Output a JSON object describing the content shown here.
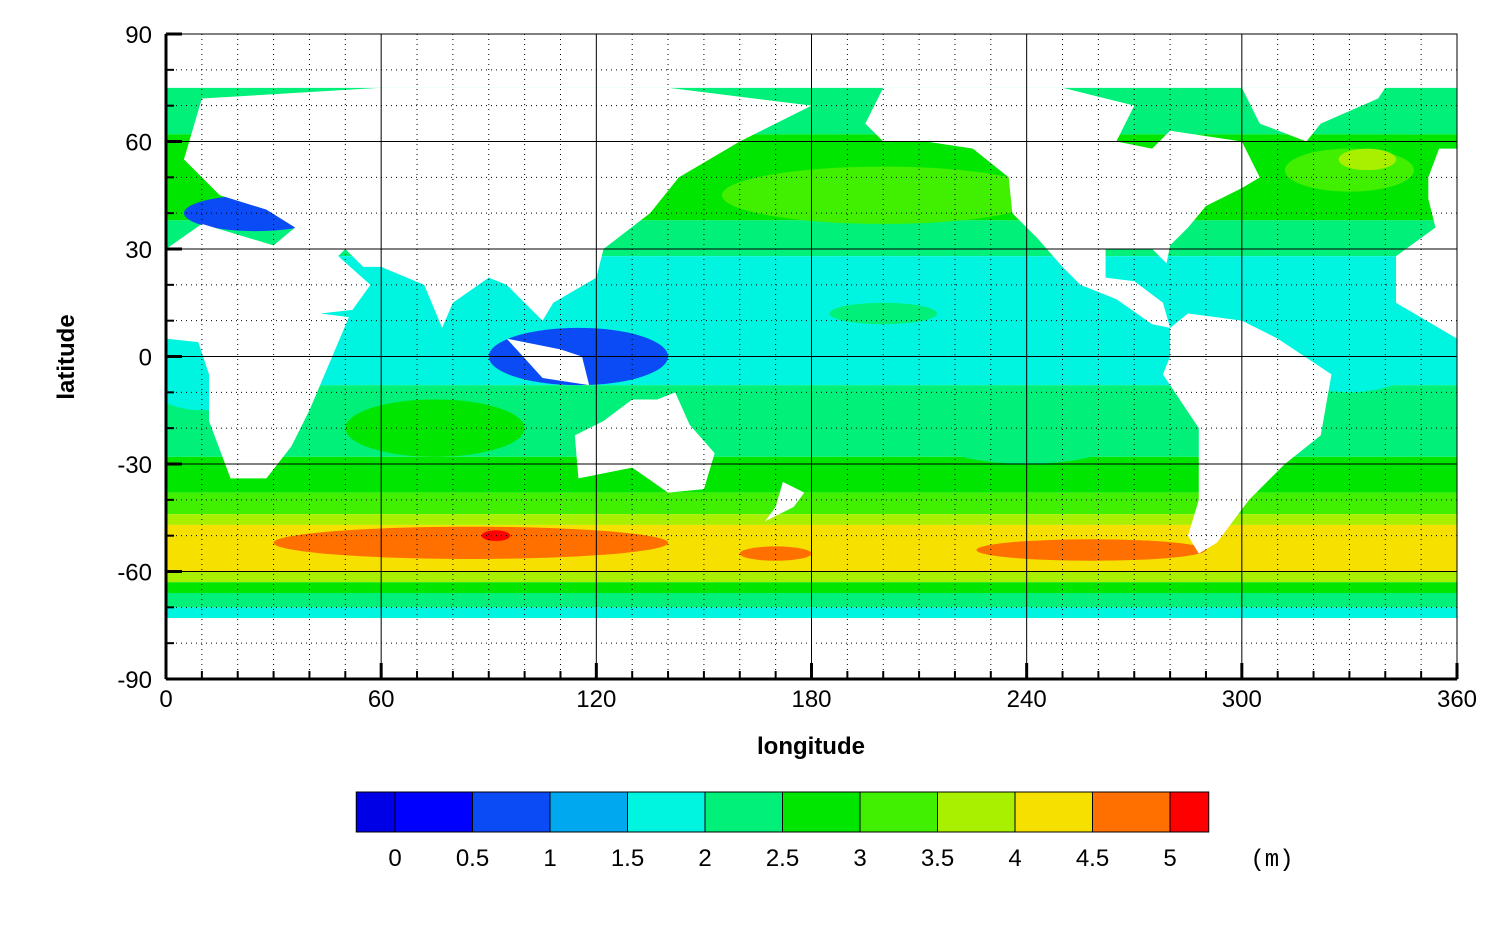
{
  "chart_data": {
    "type": "contour",
    "x_label": "longitude",
    "y_label": "latitude",
    "xlim": [
      0,
      360
    ],
    "ylim": [
      -90,
      90
    ],
    "xticks": [
      0,
      60,
      120,
      180,
      240,
      300,
      360
    ],
    "yticks": [
      -90,
      -60,
      -30,
      0,
      30,
      60,
      90
    ],
    "x_minor_ticks": [
      10,
      20,
      30,
      40,
      50,
      70,
      80,
      90,
      100,
      110,
      130,
      140,
      150,
      160,
      170,
      190,
      200,
      210,
      220,
      230,
      250,
      260,
      270,
      280,
      290,
      310,
      320,
      330,
      340,
      350
    ],
    "y_minor_ticks": [
      -80,
      -70,
      -50,
      -40,
      -20,
      -10,
      10,
      20,
      40,
      50,
      70,
      80
    ],
    "grid": true,
    "colorbar": {
      "levels": [
        0,
        0.5,
        1,
        1.5,
        2,
        2.5,
        3,
        3.5,
        4,
        4.5,
        5
      ],
      "colors": [
        "#0000e6",
        "#0000ff",
        "#0a4bf5",
        "#00a8f0",
        "#00f5e0",
        "#00f07a",
        "#00e600",
        "#40f000",
        "#a8f000",
        "#f5e000",
        "#ff7000",
        "#ff0000"
      ],
      "unit": "(m)"
    }
  }
}
